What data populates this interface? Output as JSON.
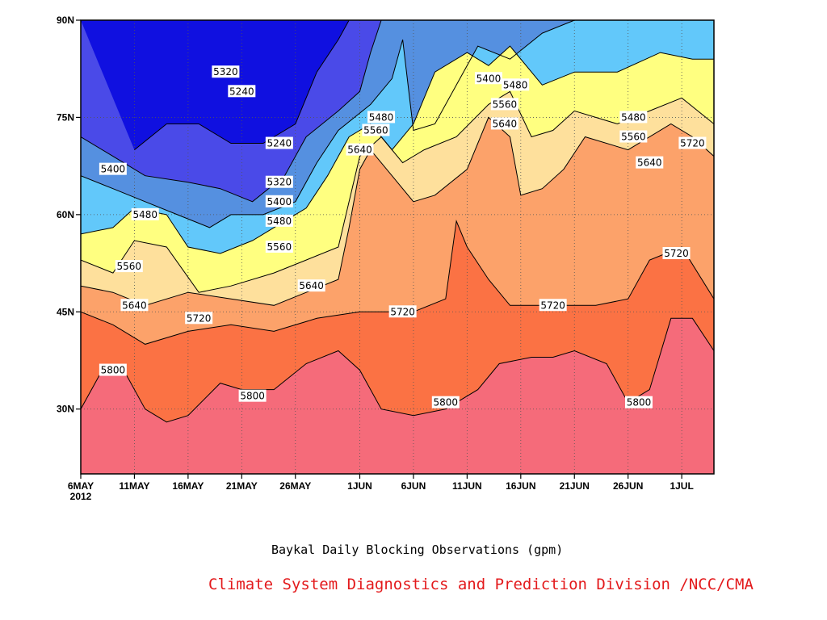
{
  "chart_data": {
    "type": "contour",
    "ylabel_ticks": [
      {
        "lat": 90,
        "label": "90N"
      },
      {
        "lat": 75,
        "label": "75N"
      },
      {
        "lat": 60,
        "label": "60N"
      },
      {
        "lat": 45,
        "label": "45N"
      },
      {
        "lat": 30,
        "label": "30N"
      }
    ],
    "xlabel_ticks": [
      {
        "day": 0,
        "label": "6MAY",
        "sub": "2012"
      },
      {
        "day": 5,
        "label": "11MAY"
      },
      {
        "day": 10,
        "label": "16MAY"
      },
      {
        "day": 15,
        "label": "21MAY"
      },
      {
        "day": 20,
        "label": "26MAY"
      },
      {
        "day": 26,
        "label": "1JUN"
      },
      {
        "day": 31,
        "label": "6JUN"
      },
      {
        "day": 36,
        "label": "11JUN"
      },
      {
        "day": 41,
        "label": "16JUN"
      },
      {
        "day": 46,
        "label": "21JUN"
      },
      {
        "day": 51,
        "label": "26JUN"
      },
      {
        "day": 56,
        "label": "1JUL"
      }
    ],
    "xlim": [
      0,
      59
    ],
    "ylim": [
      20,
      90
    ],
    "grid": true,
    "levels": [
      5240,
      5320,
      5400,
      5480,
      5560,
      5640,
      5720,
      5800
    ],
    "level_colors": {
      "below_5240": "#1010e0",
      "5240_5320": "#4a4ae8",
      "5320_5400": "#5590e0",
      "5400_5480": "#62c8fa",
      "5480_5560": "#ffff80",
      "5560_5640": "#fee09c",
      "5640_5720": "#fca26a",
      "5720_5800": "#fb7244",
      "above_5800": "#f56b7a"
    },
    "contour_lines": [
      {
        "level": 5800,
        "points": [
          [
            0,
            30
          ],
          [
            2,
            36
          ],
          [
            4,
            36
          ],
          [
            6,
            30
          ],
          [
            8,
            28
          ],
          [
            10,
            29
          ],
          [
            13,
            34
          ],
          [
            15,
            33
          ],
          [
            18,
            33
          ],
          [
            21,
            37
          ],
          [
            24,
            39
          ],
          [
            26,
            36
          ],
          [
            28,
            30
          ],
          [
            31,
            29
          ],
          [
            34,
            30
          ],
          [
            37,
            33
          ],
          [
            39,
            37
          ],
          [
            42,
            38
          ],
          [
            44,
            38
          ],
          [
            46,
            39
          ],
          [
            49,
            37
          ],
          [
            51,
            31
          ],
          [
            53,
            33
          ],
          [
            55,
            44
          ],
          [
            57,
            44
          ],
          [
            59,
            39
          ]
        ]
      },
      {
        "level": 5720,
        "points": [
          [
            0,
            45
          ],
          [
            3,
            43
          ],
          [
            6,
            40
          ],
          [
            10,
            42
          ],
          [
            14,
            43
          ],
          [
            18,
            42
          ],
          [
            22,
            44
          ],
          [
            26,
            45
          ],
          [
            31,
            45
          ],
          [
            34,
            47
          ],
          [
            35,
            59
          ],
          [
            36,
            55
          ],
          [
            38,
            50
          ],
          [
            40,
            46
          ],
          [
            44,
            46
          ],
          [
            48,
            46
          ],
          [
            51,
            47
          ],
          [
            53,
            53
          ],
          [
            56,
            55
          ],
          [
            59,
            47
          ]
        ]
      },
      {
        "level": 5640,
        "points": [
          [
            0,
            49
          ],
          [
            3,
            48
          ],
          [
            6,
            46
          ],
          [
            10,
            48
          ],
          [
            14,
            47
          ],
          [
            18,
            46
          ],
          [
            21,
            48
          ],
          [
            24,
            50
          ],
          [
            25,
            58
          ],
          [
            26,
            67
          ],
          [
            27,
            70
          ],
          [
            29,
            66
          ],
          [
            31,
            62
          ],
          [
            33,
            63
          ],
          [
            36,
            67
          ],
          [
            38,
            75
          ],
          [
            40,
            72
          ],
          [
            41,
            63
          ],
          [
            43,
            64
          ],
          [
            45,
            67
          ],
          [
            47,
            72
          ],
          [
            51,
            70
          ],
          [
            55,
            74
          ],
          [
            57,
            72
          ],
          [
            59,
            69
          ]
        ]
      },
      {
        "level": 5560,
        "points": [
          [
            0,
            53
          ],
          [
            3,
            51
          ],
          [
            5,
            56
          ],
          [
            8,
            55
          ],
          [
            11,
            48
          ],
          [
            14,
            49
          ],
          [
            18,
            51
          ],
          [
            21,
            53
          ],
          [
            24,
            55
          ],
          [
            25,
            62
          ],
          [
            26,
            69
          ],
          [
            28,
            72
          ],
          [
            30,
            68
          ],
          [
            32,
            70
          ],
          [
            35,
            72
          ],
          [
            38,
            77
          ],
          [
            40,
            79
          ],
          [
            42,
            72
          ],
          [
            44,
            73
          ],
          [
            46,
            76
          ],
          [
            50,
            74
          ],
          [
            53,
            76
          ],
          [
            56,
            78
          ],
          [
            59,
            74
          ]
        ]
      },
      {
        "level": 5480,
        "points": [
          [
            0,
            57
          ],
          [
            3,
            58
          ],
          [
            5,
            61
          ],
          [
            8,
            60
          ],
          [
            10,
            55
          ],
          [
            13,
            54
          ],
          [
            16,
            56
          ],
          [
            18,
            58
          ],
          [
            21,
            61
          ],
          [
            23,
            66
          ],
          [
            25,
            72
          ],
          [
            27,
            74
          ],
          [
            29,
            70
          ],
          [
            31,
            74
          ],
          [
            33,
            82
          ],
          [
            36,
            85
          ],
          [
            38,
            83
          ],
          [
            40,
            86
          ],
          [
            43,
            80
          ],
          [
            46,
            82
          ],
          [
            50,
            82
          ],
          [
            54,
            85
          ],
          [
            57,
            84
          ],
          [
            59,
            84
          ]
        ]
      },
      {
        "level": 5400,
        "points": [
          [
            0,
            66
          ],
          [
            3,
            64
          ],
          [
            6,
            62
          ],
          [
            9,
            60
          ],
          [
            12,
            58
          ],
          [
            14,
            60
          ],
          [
            17,
            60
          ],
          [
            20,
            62
          ],
          [
            22,
            68
          ],
          [
            24,
            73
          ],
          [
            27,
            77
          ],
          [
            29,
            81
          ],
          [
            30,
            87
          ],
          [
            31,
            73
          ],
          [
            33,
            74
          ],
          [
            35,
            80
          ],
          [
            37,
            86
          ],
          [
            40,
            84
          ],
          [
            43,
            88
          ],
          [
            46,
            90
          ]
        ]
      },
      {
        "level": 5320,
        "points": [
          [
            0,
            72
          ],
          [
            3,
            69
          ],
          [
            6,
            66
          ],
          [
            10,
            65
          ],
          [
            13,
            64
          ],
          [
            16,
            62
          ],
          [
            19,
            66
          ],
          [
            21,
            72
          ],
          [
            24,
            76
          ],
          [
            26,
            79
          ],
          [
            27,
            85
          ],
          [
            28,
            90
          ]
        ]
      },
      {
        "level": 5240,
        "points": [
          [
            5,
            70
          ],
          [
            8,
            74
          ],
          [
            11,
            74
          ],
          [
            14,
            71
          ],
          [
            17,
            71
          ],
          [
            20,
            74
          ],
          [
            22,
            82
          ],
          [
            24,
            87
          ],
          [
            25,
            90
          ]
        ]
      }
    ],
    "contour_labels": [
      {
        "text": "5320",
        "day": 13.5,
        "lat": 82
      },
      {
        "text": "5240",
        "day": 15,
        "lat": 79
      },
      {
        "text": "5240",
        "day": 18.5,
        "lat": 71
      },
      {
        "text": "5400",
        "day": 3,
        "lat": 67
      },
      {
        "text": "5320",
        "day": 18.5,
        "lat": 65
      },
      {
        "text": "5480",
        "day": 6,
        "lat": 60
      },
      {
        "text": "5400",
        "day": 18.5,
        "lat": 62
      },
      {
        "text": "5480",
        "day": 18.5,
        "lat": 59
      },
      {
        "text": "5560",
        "day": 4.5,
        "lat": 52
      },
      {
        "text": "5560",
        "day": 18.5,
        "lat": 55
      },
      {
        "text": "5640",
        "day": 5,
        "lat": 46
      },
      {
        "text": "5640",
        "day": 21.5,
        "lat": 49
      },
      {
        "text": "5720",
        "day": 11,
        "lat": 44
      },
      {
        "text": "5800",
        "day": 3,
        "lat": 36
      },
      {
        "text": "5800",
        "day": 16,
        "lat": 32
      },
      {
        "text": "5720",
        "day": 30,
        "lat": 45
      },
      {
        "text": "5800",
        "day": 34,
        "lat": 31
      },
      {
        "text": "5480",
        "day": 28,
        "lat": 75
      },
      {
        "text": "5560",
        "day": 27.5,
        "lat": 73
      },
      {
        "text": "5640",
        "day": 26,
        "lat": 70
      },
      {
        "text": "5400",
        "day": 38,
        "lat": 81
      },
      {
        "text": "5480",
        "day": 40.5,
        "lat": 80
      },
      {
        "text": "5560",
        "day": 39.5,
        "lat": 77
      },
      {
        "text": "5640",
        "day": 39.5,
        "lat": 74
      },
      {
        "text": "5720",
        "day": 44,
        "lat": 46
      },
      {
        "text": "5480",
        "day": 51.5,
        "lat": 75
      },
      {
        "text": "5560",
        "day": 51.5,
        "lat": 72
      },
      {
        "text": "5640",
        "day": 53,
        "lat": 68
      },
      {
        "text": "5720",
        "day": 57,
        "lat": 71
      },
      {
        "text": "5720",
        "day": 55.5,
        "lat": 54
      },
      {
        "text": "5800",
        "day": 52,
        "lat": 31
      }
    ]
  },
  "captions": {
    "main": "Baykal Daily Blocking Observations (gpm)",
    "source": "Climate System Diagnostics and Prediction Division /NCC/CMA"
  }
}
